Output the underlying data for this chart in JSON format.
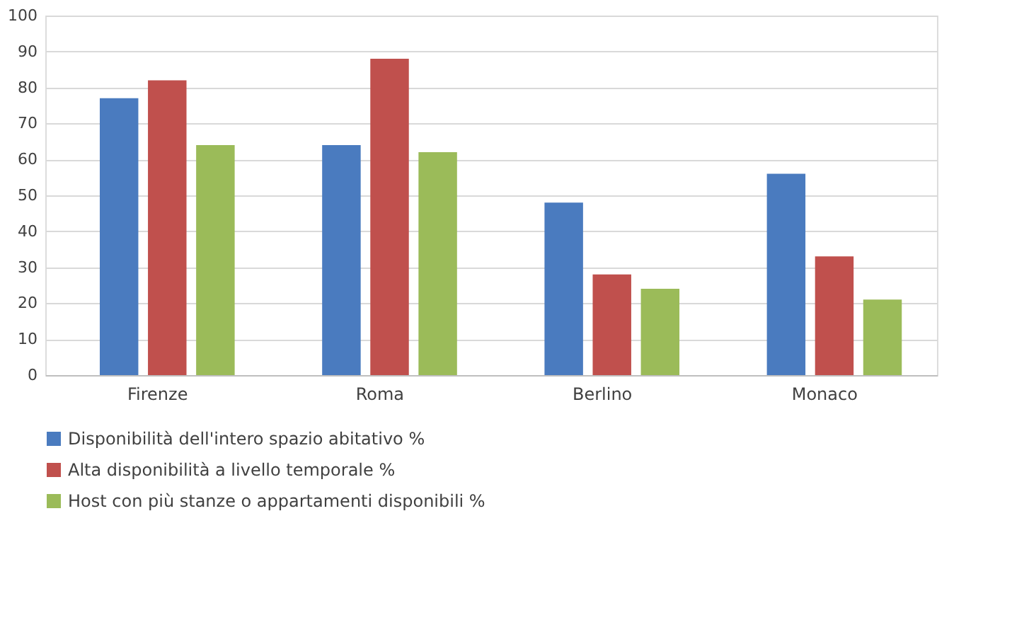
{
  "chart_data": {
    "type": "bar",
    "categories": [
      "Firenze",
      "Roma",
      "Berlino",
      "Monaco"
    ],
    "series": [
      {
        "name": "Disponibilità dell'intero spazio abitativo %",
        "color": "#4a7bbf",
        "values": [
          77,
          64,
          48,
          56
        ]
      },
      {
        "name": "Alta disponibilità a livello temporale %",
        "color": "#c0504d",
        "values": [
          82,
          88,
          28,
          33
        ]
      },
      {
        "name": "Host con più stanze o appartamenti disponibili %",
        "color": "#9bbb59",
        "values": [
          64,
          62,
          24,
          21
        ]
      }
    ],
    "ylim": [
      0,
      100
    ],
    "yticks": [
      0,
      10,
      20,
      30,
      40,
      50,
      60,
      70,
      80,
      90,
      100
    ],
    "grid": "y",
    "legend": "bottom"
  }
}
